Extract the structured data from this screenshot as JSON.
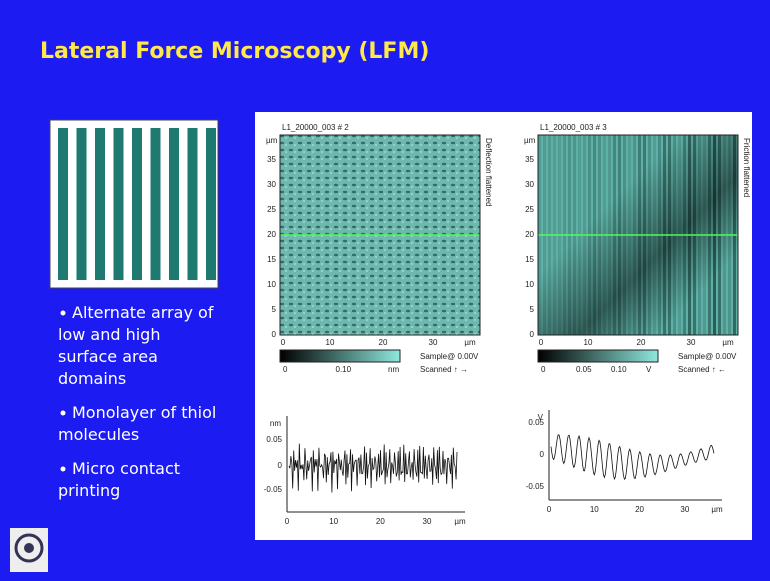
{
  "title": "Lateral Force Microscopy (LFM)",
  "bullets": [
    [
      "Alternate array of",
      "low and high",
      "surface area",
      "domains"
    ],
    [
      "Monolayer of thiol",
      "molecules"
    ],
    [
      "Micro contact",
      "printing"
    ]
  ],
  "panels": [
    {
      "title": "L1_20000_003 # 2",
      "side_label": "Deflection flattened",
      "y_unit": "µm",
      "y_ticks": [
        "35",
        "30",
        "25",
        "20",
        "15",
        "10",
        "5",
        "0"
      ],
      "x_ticks": [
        "0",
        "10",
        "20",
        "30",
        "µm"
      ],
      "colorbar": [
        "0",
        "0.10",
        "nm"
      ],
      "sample": "Sample@ 0.00V",
      "scanned": "Scanned ↑ →"
    },
    {
      "title": "L1_20000_003 # 3",
      "side_label": "Friction flattened",
      "y_unit": "µm",
      "y_ticks": [
        "35",
        "30",
        "25",
        "20",
        "15",
        "10",
        "5",
        "0"
      ],
      "x_ticks": [
        "0",
        "10",
        "20",
        "30",
        "µm"
      ],
      "colorbar": [
        "0",
        "0.05",
        "0.10",
        "V"
      ],
      "sample": "Sample@ 0.00V",
      "scanned": "Scanned ↑ ←"
    }
  ],
  "profiles": [
    {
      "y_unit": "nm",
      "y_ticks": [
        "0.05",
        "0",
        "-0.05"
      ],
      "x_ticks": [
        "0",
        "10",
        "20",
        "30",
        "µm"
      ]
    },
    {
      "y_unit": "V",
      "y_ticks": [
        "0.05",
        "0",
        "-0.05"
      ],
      "x_ticks": [
        "0",
        "10",
        "20",
        "30",
        "µm"
      ]
    }
  ]
}
